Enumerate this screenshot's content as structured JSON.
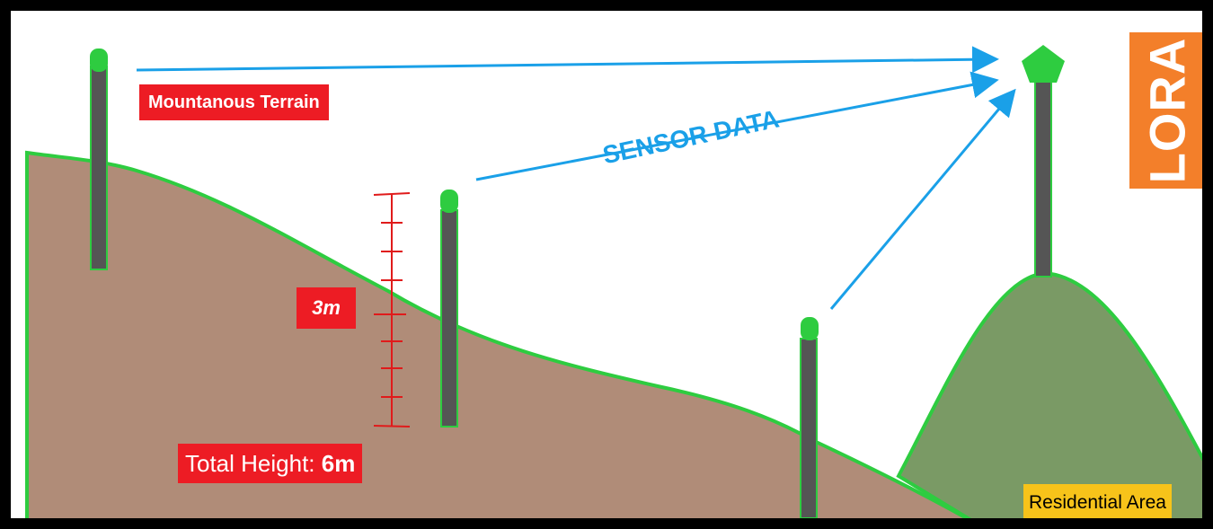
{
  "labels": {
    "terrain": "Mountanous Terrain",
    "sensor_data": "SENSOR DATA",
    "height_marker": "3m",
    "total_height_prefix": "Total Height: ",
    "total_height_value": "6m",
    "residential": "Residential Area",
    "lora": "LORA"
  },
  "colors": {
    "terrain_fill": "#b08c78",
    "terrain_edge": "#2ecc40",
    "hill_fill": "#7a9a65",
    "pole": "#555555",
    "sensor_cap": "#2ecc40",
    "arrow": "#1aa0e8",
    "label_red": "#ed1c24",
    "residential_yellow": "#f7c31a",
    "lora_orange": "#f37f2a",
    "measure_red": "#e01b1b"
  },
  "icons": {
    "sensor": "sensor-node-icon",
    "gateway": "lora-gateway-icon"
  }
}
